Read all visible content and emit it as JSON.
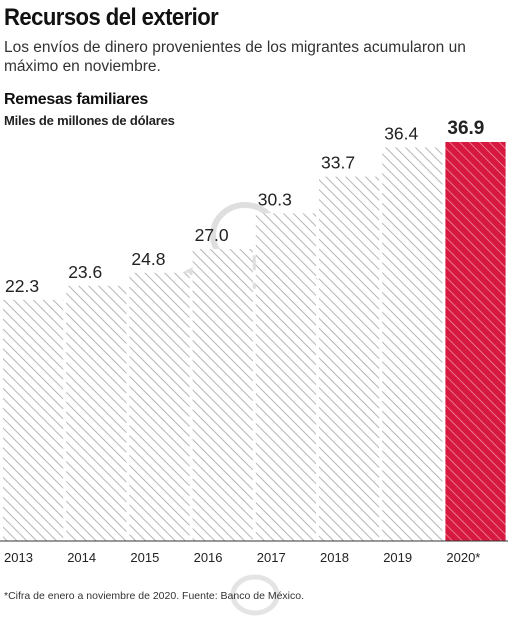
{
  "header": {
    "title": "Recursos del exterior",
    "subtitle": "Los envíos de dinero provenientes de los migrantes acumularon un máximo en noviembre.",
    "series_title": "Remesas familiares",
    "unit_label": "Miles de millones de dólares"
  },
  "footnote": "*Cifra de enero a noviembre de 2020. Fuente: Banco de México.",
  "colors": {
    "hatch": "#b5b5b5",
    "highlight": "#d7193f",
    "highlight_stripe": "#f08aa0",
    "axis": "#333333"
  },
  "chart_data": {
    "type": "bar",
    "categories": [
      "2013",
      "2014",
      "2015",
      "2016",
      "2017",
      "2018",
      "2019",
      "2020*"
    ],
    "values": [
      22.3,
      23.6,
      24.8,
      27.0,
      30.3,
      33.7,
      36.4,
      36.9
    ],
    "value_labels": [
      "22.3",
      "23.6",
      "24.8",
      "27.0",
      "30.3",
      "33.7",
      "36.4",
      "36.9"
    ],
    "highlight_index": 7,
    "title": "Remesas familiares",
    "ylabel": "Miles de millones de dólares",
    "grid": false
  }
}
